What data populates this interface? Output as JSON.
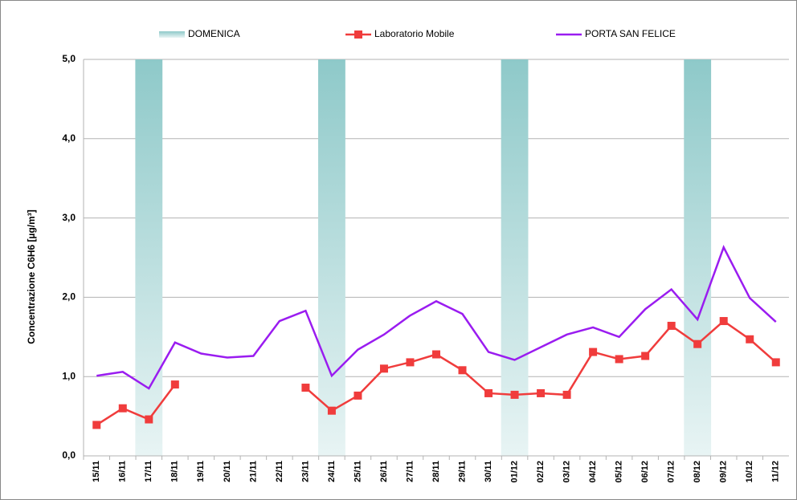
{
  "chart_data": {
    "type": "line",
    "y_label": "Concentrazione C6H6 [µg/m³]",
    "categories": [
      "15/11",
      "16/11",
      "17/11",
      "18/11",
      "19/11",
      "20/11",
      "21/11",
      "22/11",
      "23/11",
      "24/11",
      "25/11",
      "26/11",
      "27/11",
      "28/11",
      "29/11",
      "30/11",
      "01/12",
      "02/12",
      "03/12",
      "04/12",
      "05/12",
      "06/12",
      "07/12",
      "08/12",
      "09/12",
      "10/12",
      "11/12"
    ],
    "series": [
      {
        "name": "DOMENICA",
        "type": "bar",
        "color": "#8ec9c9",
        "values": [
          null,
          null,
          5,
          null,
          null,
          null,
          null,
          null,
          null,
          5,
          null,
          null,
          null,
          null,
          null,
          null,
          5,
          null,
          null,
          null,
          null,
          null,
          null,
          5,
          null,
          null,
          null
        ]
      },
      {
        "name": "Laboratorio Mobile",
        "type": "line",
        "marker": "square",
        "color": "#f03c3c",
        "values": [
          0.39,
          0.6,
          0.46,
          0.9,
          null,
          null,
          null,
          null,
          0.86,
          0.57,
          0.76,
          1.1,
          1.18,
          1.28,
          1.08,
          0.79,
          0.77,
          0.79,
          0.77,
          1.31,
          1.22,
          1.26,
          1.64,
          1.41,
          1.7,
          1.47,
          1.18
        ]
      },
      {
        "name": "PORTA SAN FELICE",
        "type": "line",
        "color": "#9a1cf0",
        "values": [
          1.01,
          1.06,
          0.85,
          1.43,
          1.29,
          1.24,
          1.26,
          1.7,
          1.83,
          1.01,
          1.34,
          1.53,
          1.77,
          1.95,
          1.79,
          1.31,
          1.21,
          1.37,
          1.53,
          1.62,
          1.5,
          1.85,
          2.1,
          1.72,
          2.63,
          1.99,
          1.69
        ]
      }
    ],
    "ylim": [
      0,
      5
    ],
    "yticks": [
      {
        "value": 0,
        "label": "0,0"
      },
      {
        "value": 1,
        "label": "1,0"
      },
      {
        "value": 2,
        "label": "2,0"
      },
      {
        "value": 3,
        "label": "3,0"
      },
      {
        "value": 4,
        "label": "4,0"
      },
      {
        "value": 5,
        "label": "5,0"
      }
    ],
    "grid": true,
    "legend": "top"
  }
}
